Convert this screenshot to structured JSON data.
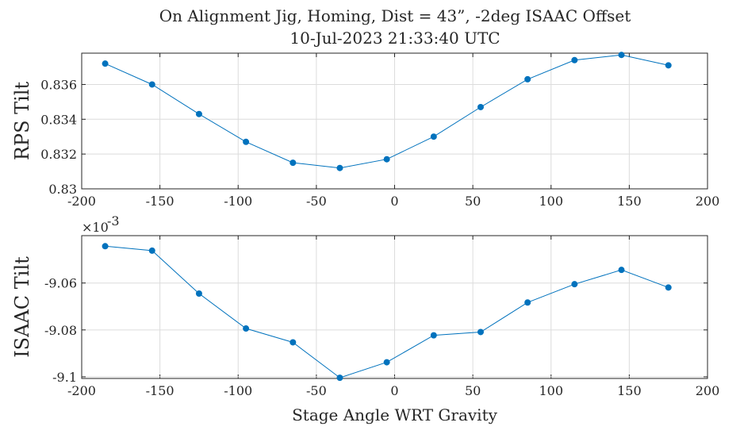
{
  "title_line1": "On Alignment Jig, Homing, Dist = 43”, -2deg ISAAC Offset",
  "title_line2": "10-Jul-2023 21:33:40 UTC",
  "colors": {
    "series": "#0072BD",
    "axis": "#262626",
    "grid": "#dcdcdc"
  },
  "chart_data": [
    {
      "type": "line",
      "ylabel": "RPS Tilt",
      "xlabel": "",
      "xlim": [
        -200,
        200
      ],
      "ylim": [
        0.83,
        0.8378
      ],
      "x_ticks": [
        "-200",
        "-150",
        "-100",
        "-50",
        "0",
        "50",
        "100",
        "150",
        "200"
      ],
      "y_ticks": [
        "0.83",
        "0.832",
        "0.834",
        "0.836"
      ],
      "grid": true,
      "series": [
        {
          "x": [
            -185,
            -155,
            -125,
            -95,
            -65,
            -35,
            -5,
            25,
            55,
            85,
            115,
            145,
            175
          ],
          "y": [
            0.8372,
            0.836,
            0.8343,
            0.8327,
            0.8315,
            0.8312,
            0.8317,
            0.833,
            0.8347,
            0.8363,
            0.8374,
            0.8377,
            0.8371
          ]
        }
      ]
    },
    {
      "type": "line",
      "ylabel": "ISAAC Tilt",
      "xlabel": "Stage Angle WRT Gravity",
      "exponent_label": "×10",
      "exponent_power": "-3",
      "xlim": [
        -200,
        200
      ],
      "ylim": [
        -9.1007,
        -9.0398
      ],
      "x_ticks": [
        "-200",
        "-150",
        "-100",
        "-50",
        "0",
        "50",
        "100",
        "150",
        "200"
      ],
      "y_ticks": [
        "-9.06",
        "-9.08",
        "-9.1"
      ],
      "grid": true,
      "series": [
        {
          "x": [
            -185,
            -155,
            -125,
            -95,
            -65,
            -35,
            -5,
            25,
            55,
            85,
            115,
            145,
            175
          ],
          "y": [
            -9.0443,
            -9.0462,
            -9.0645,
            -9.0794,
            -9.0853,
            -9.1004,
            -9.0938,
            -9.0823,
            -9.0809,
            -9.0683,
            -9.0605,
            -9.0544,
            -9.0619
          ]
        }
      ]
    }
  ]
}
